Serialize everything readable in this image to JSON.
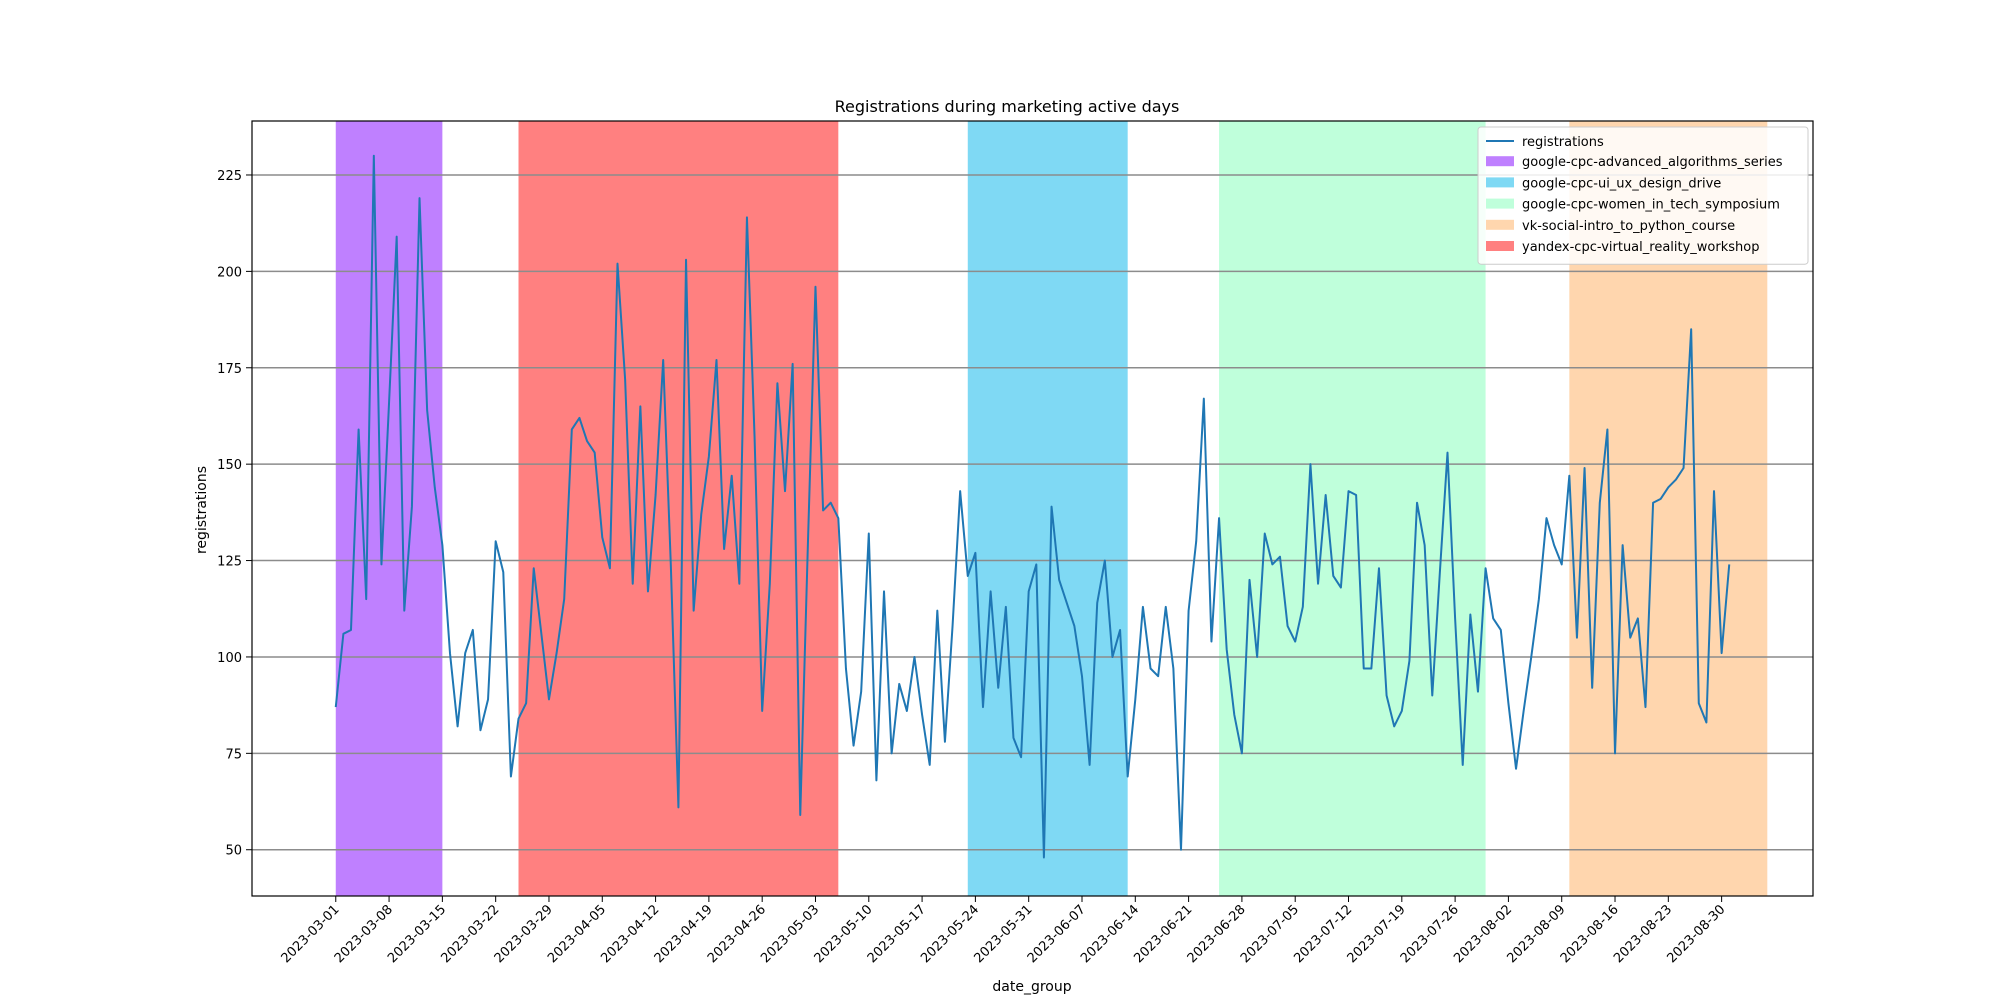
{
  "chart_data": {
    "type": "line",
    "title": "Registrations during marketing active days",
    "xlabel": "date_group",
    "ylabel": "registrations",
    "ylim": [
      38,
      239
    ],
    "xlim": [
      "2023-02-18",
      "2023-09-11"
    ],
    "grid": "horizontal",
    "legend_position": "top-right",
    "line_color": "#1f77b4",
    "x_ticks": [
      "2023-03-01",
      "2023-03-08",
      "2023-03-15",
      "2023-03-22",
      "2023-03-29",
      "2023-04-05",
      "2023-04-12",
      "2023-04-19",
      "2023-04-26",
      "2023-05-03",
      "2023-05-10",
      "2023-05-17",
      "2023-05-24",
      "2023-05-31",
      "2023-06-07",
      "2023-06-14",
      "2023-06-21",
      "2023-06-28",
      "2023-07-05",
      "2023-07-12",
      "2023-07-19",
      "2023-07-26",
      "2023-08-02",
      "2023-08-09",
      "2023-08-16",
      "2023-08-23",
      "2023-08-30"
    ],
    "y_ticks": [
      50,
      75,
      100,
      125,
      150,
      175,
      200,
      225
    ],
    "series": [
      {
        "name": "registrations",
        "start_date": "2023-03-01",
        "values": [
          87,
          106,
          107,
          159,
          115,
          230,
          124,
          166,
          209,
          112,
          139,
          219,
          164,
          144,
          129,
          101,
          82,
          101,
          107,
          81,
          89,
          130,
          122,
          69,
          84,
          88,
          123,
          106,
          89,
          101,
          115,
          159,
          162,
          156,
          153,
          131,
          123,
          202,
          172,
          119,
          165,
          117,
          142,
          177,
          124,
          61,
          203,
          112,
          137,
          152,
          177,
          128,
          147,
          119,
          214,
          157,
          86,
          119,
          171,
          143,
          176,
          59,
          129,
          196,
          138,
          140,
          136,
          97,
          77,
          91,
          132,
          68,
          117,
          75,
          93,
          86,
          100,
          85,
          72,
          112,
          78,
          108,
          143,
          121,
          127,
          87,
          117,
          92,
          113,
          79,
          74,
          117,
          124,
          48,
          139,
          120,
          114,
          108,
          95,
          72,
          114,
          125,
          100,
          107,
          69,
          89,
          113,
          97,
          95,
          113,
          97,
          50,
          112,
          130,
          167,
          104,
          136,
          102,
          85,
          75,
          120,
          100,
          132,
          124,
          126,
          108,
          104,
          113,
          150,
          119,
          142,
          121,
          118,
          143,
          142,
          97,
          97,
          123,
          90,
          82,
          86,
          99,
          140,
          129,
          90,
          122,
          153,
          110,
          72,
          111,
          91,
          123,
          110,
          107,
          88,
          71,
          86,
          100,
          115,
          136,
          129,
          124,
          147,
          105,
          149,
          92,
          140,
          159,
          75,
          129,
          105,
          110,
          87,
          140,
          141,
          144,
          146,
          149,
          185,
          88,
          83,
          143,
          101,
          124
        ]
      }
    ],
    "campaigns": [
      {
        "name": "google-cpc-advanced_algorithms_series",
        "start": "2023-03-01",
        "end": "2023-03-15",
        "color": "#bf80ff"
      },
      {
        "name": "google-cpc-ui_ux_design_drive",
        "start": "2023-05-23",
        "end": "2023-06-13",
        "color": "#7fd9f4"
      },
      {
        "name": "google-cpc-women_in_tech_symposium",
        "start": "2023-06-25",
        "end": "2023-07-30",
        "color": "#bfffdb"
      },
      {
        "name": "vk-social-intro_to_python_course",
        "start": "2023-08-10",
        "end": "2023-09-05",
        "color": "#ffd6ae"
      },
      {
        "name": "yandex-cpc-virtual_reality_workshop",
        "start": "2023-03-25",
        "end": "2023-05-06",
        "color": "#ff8080"
      }
    ]
  }
}
